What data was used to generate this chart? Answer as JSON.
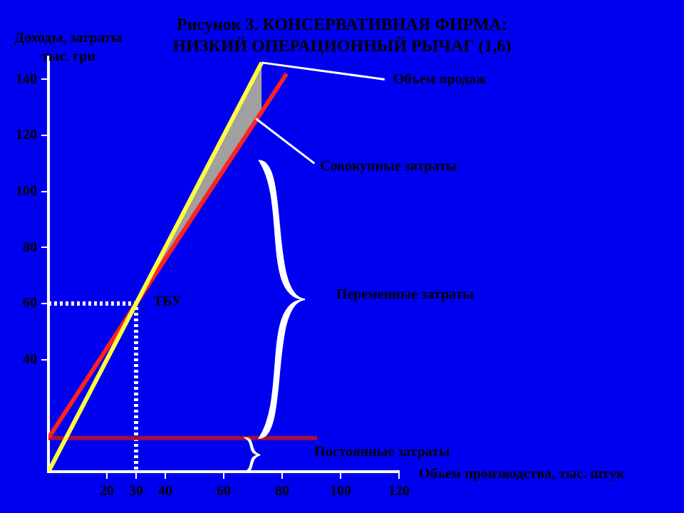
{
  "chart_data": {
    "type": "line",
    "title": "Рисунок 3. КОНСЕРВАТИВНАЯ ФИРМА: НИЗКИЙ ОПЕРАЦИОННЫЙ РЫЧАГ (1,6)",
    "xlabel": "Объем производства, тыс. штук",
    "ylabel": "Доходы, затраты тыс. грн",
    "xlim": [
      0,
      120
    ],
    "ylim": [
      0,
      148
    ],
    "xticks": [
      20,
      30,
      40,
      60,
      80,
      100,
      120
    ],
    "yticks": [
      40,
      60,
      80,
      100,
      120,
      140
    ],
    "grid": false,
    "legend": false,
    "marker": "none",
    "series": [
      {
        "color": "#ffff40",
        "x": [
          0,
          30,
          73
        ],
        "values": [
          0,
          60,
          146
        ],
        "lower": [
          null,
          60,
          129
        ],
        "upper": [
          null,
          60,
          146
        ]
      },
      {
        "color": "#ff2020",
        "x": [
          0,
          30,
          81.5
        ],
        "values": [
          12,
          60,
          142
        ]
      },
      {
        "color": "#a01040",
        "x": [
          0,
          92
        ],
        "values": [
          12,
          12
        ]
      },
      {
        "color": "#ffffff",
        "line_style": "dotted",
        "x": [
          0,
          30,
          30
        ],
        "values": [
          60,
          60,
          0
        ]
      }
    ],
    "annotations": [
      {
        "text": "Объем продаж",
        "x": 73,
        "y": 146
      },
      {
        "text": "Совокупные затраты",
        "x": 71,
        "y": 126
      },
      "Переменные затраты",
      "Постоянные затраты",
      {
        "text": "ТБУ",
        "x": 30,
        "y": 60
      }
    ]
  }
}
